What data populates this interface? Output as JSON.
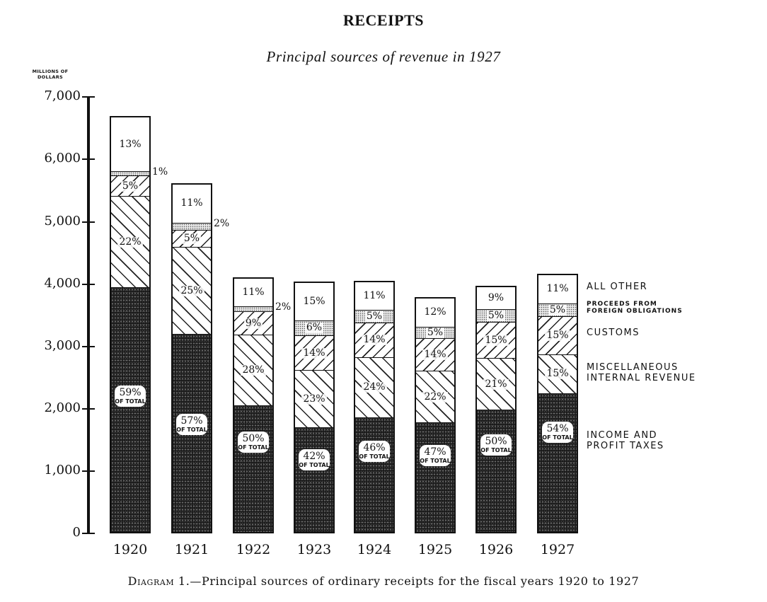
{
  "title": "RECEIPTS",
  "subtitle": "Principal sources of revenue in 1927",
  "y_axis": {
    "label_line1": "MILLIONS OF",
    "label_line2": "DOLLARS",
    "ticks": [
      "0",
      "1,000",
      "2,000",
      "3,000",
      "4,000",
      "5,000",
      "6,000",
      "7,000"
    ]
  },
  "legend": {
    "other": "ALL OTHER",
    "foreign_line1": "PROCEEDS FROM",
    "foreign_line2": "FOREIGN OBLIGATIONS",
    "customs": "CUSTOMS",
    "misc_line1": "MISCELLANEOUS",
    "misc_line2": "INTERNAL REVENUE",
    "income_line1": "INCOME AND",
    "income_line2": "PROFIT TAXES"
  },
  "of_total": "OF TOTAL",
  "bars": [
    {
      "year": "1920",
      "income": "59%",
      "misc": "22%",
      "customs": "5%",
      "foreign": "1%",
      "other": "13%"
    },
    {
      "year": "1921",
      "income": "57%",
      "misc": "25%",
      "customs": "5%",
      "foreign": "2%",
      "other": "11%"
    },
    {
      "year": "1922",
      "income": "50%",
      "misc": "28%",
      "customs": "9%",
      "foreign": "2%",
      "other": "11%"
    },
    {
      "year": "1923",
      "income": "42%",
      "misc": "23%",
      "customs": "14%",
      "foreign": "6%",
      "other": "15%"
    },
    {
      "year": "1924",
      "income": "46%",
      "misc": "24%",
      "customs": "14%",
      "foreign": "5%",
      "other": "11%"
    },
    {
      "year": "1925",
      "income": "47%",
      "misc": "22%",
      "customs": "14%",
      "foreign": "5%",
      "other": "12%"
    },
    {
      "year": "1926",
      "income": "50%",
      "misc": "21%",
      "customs": "15%",
      "foreign": "5%",
      "other": "9%"
    },
    {
      "year": "1927",
      "income": "54%",
      "misc": "15%",
      "customs": "15%",
      "foreign": "5%",
      "other": "11%"
    }
  ],
  "caption": {
    "prefix": "Diagram 1.",
    "text": "—Principal sources of ordinary receipts for the fiscal years 1920 to 1927"
  },
  "chart_data": {
    "type": "bar",
    "stacked": true,
    "title": "RECEIPTS",
    "subtitle": "Principal sources of revenue in 1927",
    "xlabel": "",
    "ylabel": "Millions of dollars",
    "ylim": [
      0,
      7000
    ],
    "yticks": [
      0,
      1000,
      2000,
      3000,
      4000,
      5000,
      6000,
      7000
    ],
    "grid": false,
    "legend_position": "right",
    "categories": [
      "1920",
      "1921",
      "1922",
      "1923",
      "1924",
      "1925",
      "1926",
      "1927"
    ],
    "totals": [
      6695,
      5620,
      4110,
      4040,
      4050,
      3790,
      3970,
      4170
    ],
    "series": [
      {
        "name": "Income and profit taxes",
        "percent": [
          59,
          57,
          50,
          42,
          46,
          47,
          50,
          54
        ]
      },
      {
        "name": "Miscellaneous internal revenue",
        "percent": [
          22,
          25,
          28,
          23,
          24,
          22,
          21,
          15
        ]
      },
      {
        "name": "Customs",
        "percent": [
          5,
          5,
          9,
          14,
          14,
          14,
          15,
          15
        ]
      },
      {
        "name": "Proceeds from foreign obligations",
        "percent": [
          1,
          2,
          2,
          6,
          5,
          5,
          5,
          5
        ]
      },
      {
        "name": "All other",
        "percent": [
          13,
          11,
          11,
          15,
          11,
          12,
          9,
          11
        ]
      }
    ],
    "caption": "Diagram 1.—Principal sources of ordinary receipts for the fiscal years 1920 to 1927"
  }
}
